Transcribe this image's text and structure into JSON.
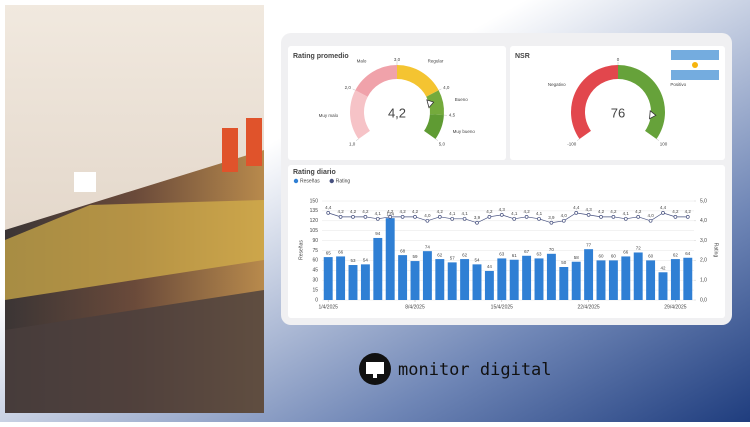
{
  "chart_data": [
    {
      "type": "gauge",
      "title": "Rating promedio",
      "value": 4.2,
      "value_label": "4,2",
      "range": [
        1,
        5
      ],
      "ticks": [
        {
          "value": 1,
          "label": "1,0"
        },
        {
          "value": 2,
          "label": "2,0"
        },
        {
          "value": 3,
          "label": "3,0"
        },
        {
          "value": 4,
          "label": "4,0"
        },
        {
          "value": 4.5,
          "label": "4,5"
        },
        {
          "value": 5,
          "label": "5,0"
        }
      ],
      "bands": [
        {
          "name": "Muy malo",
          "color": "#f6c3c7",
          "range": [
            1,
            2
          ]
        },
        {
          "name": "Malo",
          "color": "#f0a2aa",
          "range": [
            2,
            3
          ]
        },
        {
          "name": "Regular",
          "color": "#f4c431",
          "range": [
            3,
            4
          ]
        },
        {
          "name": "Bueno",
          "color": "#74aa3c",
          "range": [
            4,
            4.5
          ]
        },
        {
          "name": "Muy bueno",
          "color": "#5f9b33",
          "range": [
            4.5,
            5
          ]
        }
      ]
    },
    {
      "type": "gauge",
      "title": "NSR",
      "value": 76,
      "range": [
        -100,
        100
      ],
      "ticks": [
        -100,
        0,
        100
      ],
      "bands": [
        {
          "name": "Negativo",
          "color": "#e2474d",
          "range": [
            -100,
            0
          ]
        },
        {
          "name": "Positivo",
          "color": "#66a23a",
          "range": [
            0,
            100
          ]
        }
      ]
    },
    {
      "type": "bar",
      "title": "Rating diario",
      "categories": [
        "1/4/2025",
        null,
        null,
        null,
        null,
        null,
        null,
        "8/4/2025",
        null,
        null,
        null,
        null,
        null,
        null,
        "15/4/2025",
        null,
        null,
        null,
        null,
        null,
        null,
        "22/4/2025",
        null,
        null,
        null,
        null,
        null,
        null,
        "29/4/2025",
        null
      ],
      "series": [
        {
          "name": "Reseñas",
          "color": "#2f7fd4",
          "type": "bar",
          "values": [
            65,
            66,
            53,
            54,
            94,
            124,
            68,
            59,
            74,
            62,
            57,
            62,
            54,
            44,
            63,
            61,
            67,
            63,
            70,
            50,
            58,
            77,
            60,
            60,
            66,
            72,
            60,
            42,
            62,
            64
          ]
        },
        {
          "name": "Rating",
          "color": "#46507f",
          "type": "line",
          "axis": "y2",
          "values": [
            4.4,
            4.2,
            4.2,
            4.2,
            4.1,
            4.2,
            4.2,
            4.2,
            4.0,
            4.2,
            4.1,
            4.1,
            3.9,
            4.2,
            4.3,
            4.1,
            4.2,
            4.1,
            3.9,
            4.0,
            4.4,
            4.3,
            4.2,
            4.2,
            4.1,
            4.2,
            4.0,
            4.4,
            4.2,
            4.2
          ],
          "value_labels": [
            "4,4",
            "4,2",
            "4,2",
            "4,2",
            "4,1",
            "4,2",
            "4,2",
            "4,2",
            "4,0",
            "4,2",
            "4,1",
            "4,1",
            "3,9",
            "4,2",
            "4,3",
            "4,1",
            "4,2",
            "4,1",
            "3,9",
            "4,0",
            "4,4",
            "4,3",
            "4,2",
            "4,2",
            "4,1",
            "4,2",
            "4,0",
            "4,4",
            "4,2",
            "4,2"
          ]
        }
      ],
      "y_label": "Reseñas",
      "y2_label": "Rating",
      "ylim": [
        0,
        150
      ],
      "yticks": [
        0,
        15,
        30,
        45,
        60,
        75,
        90,
        105,
        120,
        135,
        150
      ],
      "y2lim": [
        0,
        5
      ],
      "y2ticks": [
        {
          "value": 0,
          "label": "0,0"
        },
        {
          "value": 1,
          "label": "1,0"
        },
        {
          "value": 2,
          "label": "2,0"
        },
        {
          "value": 3,
          "label": "3,0"
        },
        {
          "value": 4,
          "label": "4,0"
        },
        {
          "value": 5,
          "label": "5,0"
        }
      ],
      "grid": true,
      "legend": "top-left"
    }
  ],
  "brand": "monitor digital"
}
